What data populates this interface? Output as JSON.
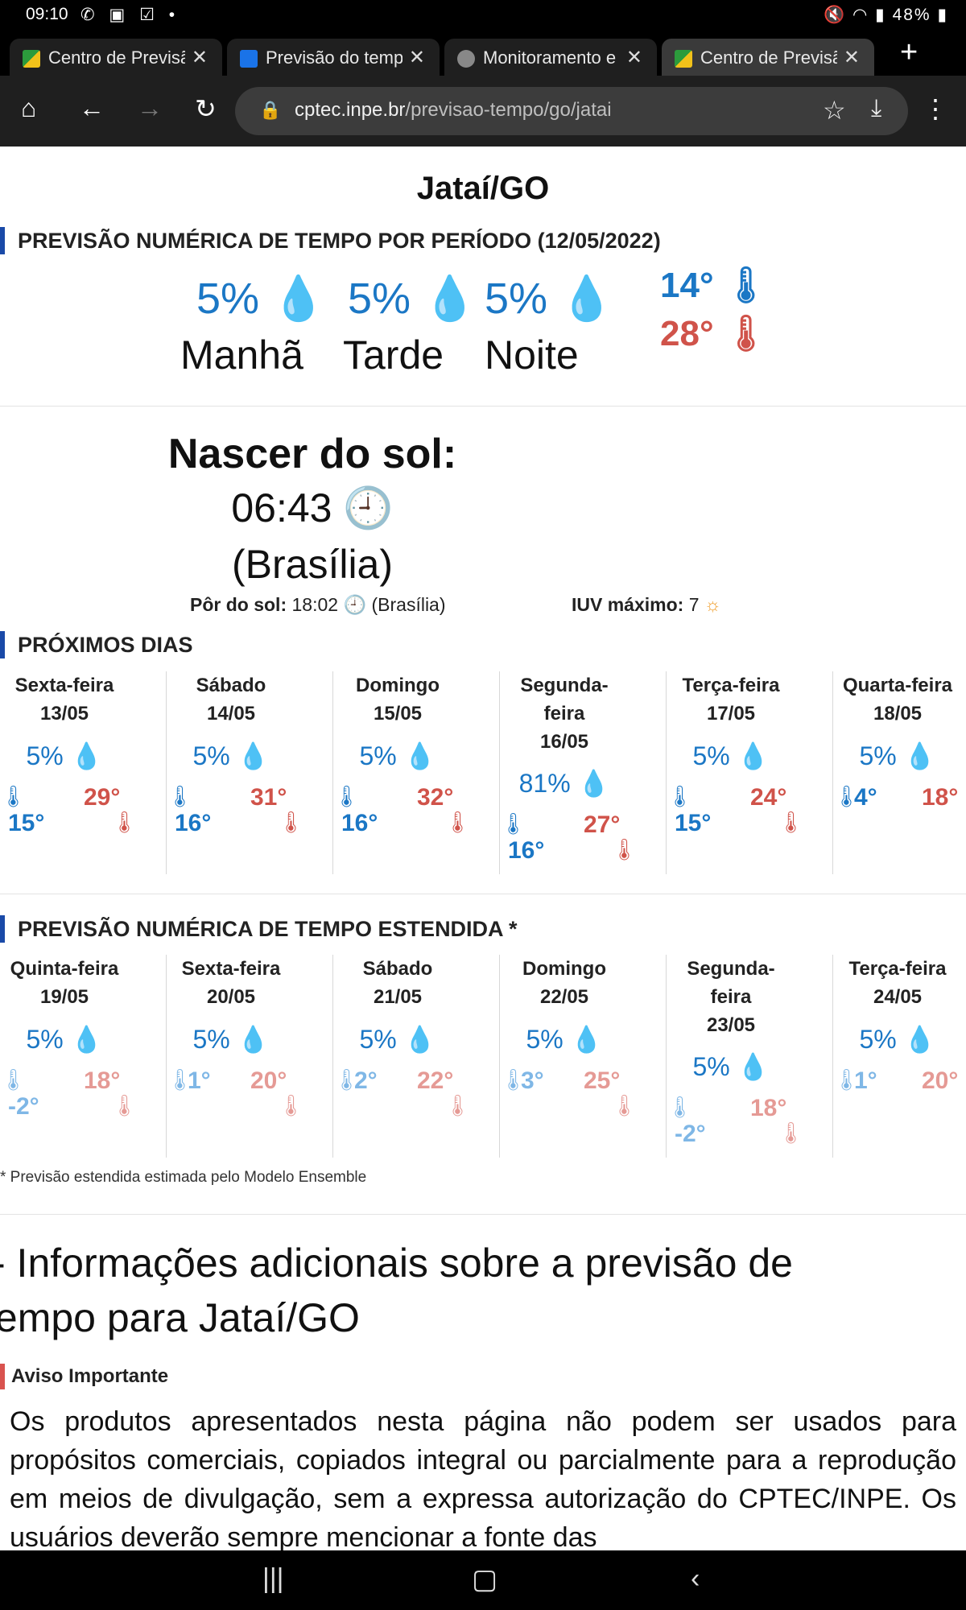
{
  "status_bar": {
    "time": "09:10",
    "battery": "48%"
  },
  "tabs": [
    {
      "title": "Centro de Previsão"
    },
    {
      "title": "Previsão do tempo"
    },
    {
      "title": "Monitoramento e"
    },
    {
      "title": "Centro de Previsão"
    }
  ],
  "toolbar": {
    "url_host": "cptec.inpe.br",
    "url_path": "/previsao-tempo/go/jatai"
  },
  "page": {
    "title": "Jataí/GO",
    "period_heading": "PREVISÃO NUMÉRICA DE TEMPO POR PERÍODO (12/05/2022)",
    "periods": [
      {
        "label": "Manhã",
        "rain": "5%"
      },
      {
        "label": "Tarde",
        "rain": "5%"
      },
      {
        "label": "Noite",
        "rain": "5%"
      }
    ],
    "temp_min": "14°",
    "temp_max": "28°",
    "sunrise_label": "Nascer do sol:",
    "sunrise_time": "06:43",
    "sunrise_zone": "(Brasília)",
    "sunset_label": "Pôr do sol:",
    "sunset_time": "18:02",
    "sunset_zone": "(Brasília)",
    "iuv_label": "IUV máximo:",
    "iuv_value": "7",
    "next_days_heading": "PRÓXIMOS DIAS",
    "next_days": [
      {
        "name": "Sexta-feira",
        "date": "13/05",
        "rain": "5%",
        "min": "15°",
        "max": "29°"
      },
      {
        "name": "Sábado",
        "date": "14/05",
        "rain": "5%",
        "min": "16°",
        "max": "31°"
      },
      {
        "name": "Domingo",
        "date": "15/05",
        "rain": "5%",
        "min": "16°",
        "max": "32°"
      },
      {
        "name1": "Segunda-",
        "name2": "feira",
        "date": "16/05",
        "rain": "81%",
        "min": "16°",
        "max": "27°"
      },
      {
        "name": "Terça-feira",
        "date": "17/05",
        "rain": "5%",
        "min": "15°",
        "max": "24°"
      },
      {
        "name": "Quarta-feira",
        "date": "18/05",
        "rain": "5%",
        "min": "4°",
        "max": "18°"
      }
    ],
    "extended_heading": "PREVISÃO NUMÉRICA DE TEMPO ESTENDIDA *",
    "extended_days": [
      {
        "name": "Quinta-feira",
        "date": "19/05",
        "rain": "5%",
        "min": "-2°",
        "max": "18°"
      },
      {
        "name": "Sexta-feira",
        "date": "20/05",
        "rain": "5%",
        "min": "1°",
        "max": "20°"
      },
      {
        "name": "Sábado",
        "date": "21/05",
        "rain": "5%",
        "min": "2°",
        "max": "22°"
      },
      {
        "name": "Domingo",
        "date": "22/05",
        "rain": "5%",
        "min": "3°",
        "max": "25°"
      },
      {
        "name1": "Segunda-",
        "name2": "feira",
        "date": "23/05",
        "rain": "5%",
        "min": "-2°",
        "max": "18°"
      },
      {
        "name": "Terça-feira",
        "date": "24/05",
        "rain": "5%",
        "min": "1°",
        "max": "20°"
      }
    ],
    "footnote": "* Previsão estendida estimada pelo Modelo Ensemble",
    "info_line1": "Informações adicionais sobre a previsão de",
    "info_line2": "tempo para Jataí/GO",
    "notice_title": "Aviso Importante",
    "notice_text": "Os produtos apresentados nesta página não podem ser usados para propósitos comerciais, copiados integral ou parcialmente para a reprodução em meios de divulgação, sem a expressa autorização do CPTEC/INPE. Os usuários deverão sempre mencionar a fonte das"
  }
}
